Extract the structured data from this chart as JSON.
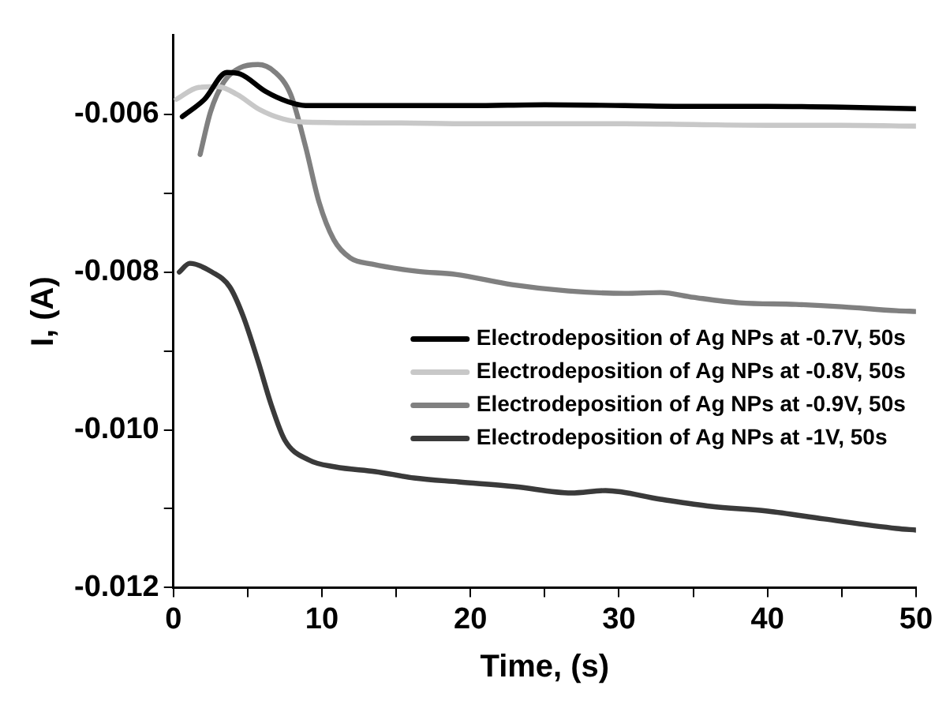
{
  "chart_data": {
    "type": "line",
    "xlabel": "Time, (s)",
    "ylabel": "I, (A)",
    "xlim": [
      0,
      50
    ],
    "ylim": [
      -0.012,
      -0.005
    ],
    "xticks": [
      0,
      {
        "value": 5,
        "label": null
      },
      10,
      {
        "value": 15,
        "label": null
      },
      20,
      {
        "value": 25,
        "label": null
      },
      30,
      {
        "value": 35,
        "label": null
      },
      40,
      {
        "value": 45,
        "label": null
      },
      50
    ],
    "yticks": [
      {
        "value": -0.012,
        "label": "-0.012"
      },
      {
        "value": -0.011,
        "label": null
      },
      {
        "value": -0.01,
        "label": "-0.010"
      },
      {
        "value": -0.009,
        "label": null
      },
      {
        "value": -0.008,
        "label": "-0.008"
      },
      {
        "value": -0.007,
        "label": null
      },
      {
        "value": -0.006,
        "label": "-0.006"
      }
    ],
    "grid": false,
    "legend": "right",
    "marker": "none",
    "line_style": "solid",
    "series": [
      {
        "name": "Electrodeposition of Ag NPs at -0.7V, 50s",
        "color": "#000000",
        "x": [
          0.6,
          2.1,
          3.6,
          4.5,
          6.2,
          7.7,
          8.9,
          15,
          20,
          25,
          30.4,
          35,
          40,
          45,
          50
        ],
        "values": [
          -0.00603,
          -0.00581,
          -0.00547,
          -0.00549,
          -0.00571,
          -0.00584,
          -0.00589,
          -0.00589,
          -0.00589,
          -0.00588,
          -0.00589,
          -0.0059,
          -0.0059,
          -0.00591,
          -0.00593
        ]
      },
      {
        "name": "Electrodeposition of Ag NPs at -0.8V, 50s",
        "color": "#c8c8c8",
        "x": [
          0.2,
          1.7,
          3,
          4.3,
          5.8,
          7.4,
          8.9,
          15,
          20,
          25,
          30.4,
          35,
          40,
          45,
          50
        ],
        "values": [
          -0.00581,
          -0.00566,
          -0.00565,
          -0.00575,
          -0.00594,
          -0.00606,
          -0.0061,
          -0.00611,
          -0.00612,
          -0.00612,
          -0.00612,
          -0.00613,
          -0.00614,
          -0.00614,
          -0.00615
        ]
      },
      {
        "name": "Electrodeposition of Ag NPs at -0.9V, 50s",
        "color": "#808080",
        "x": [
          1.8,
          2.5,
          3.4,
          4.5,
          5.7,
          6.8,
          7.9,
          8.9,
          9.8,
          10.8,
          11.9,
          13.4,
          16.4,
          19,
          22.8,
          26.6,
          30.4,
          32.8,
          35,
          38.1,
          41.9,
          45,
          48.7,
          50
        ],
        "values": [
          -0.00651,
          -0.00597,
          -0.00559,
          -0.00541,
          -0.00537,
          -0.00546,
          -0.00575,
          -0.00641,
          -0.00711,
          -0.00759,
          -0.00782,
          -0.0079,
          -0.00799,
          -0.00803,
          -0.00816,
          -0.00824,
          -0.00827,
          -0.00826,
          -0.00832,
          -0.00839,
          -0.00841,
          -0.00844,
          -0.00849,
          -0.0085
        ]
      },
      {
        "name": "Electrodeposition of Ag NPs at -1V, 50s",
        "color": "#3a3a3a",
        "x": [
          0.4,
          1.1,
          2.6,
          3.8,
          4.7,
          5.7,
          6.6,
          7.5,
          9.1,
          10.9,
          13.6,
          16.2,
          19.2,
          23,
          26.8,
          29.1,
          32.8,
          36.2,
          40,
          43.8,
          48.7,
          50
        ],
        "values": [
          -0.008,
          -0.00789,
          -0.008,
          -0.00819,
          -0.00856,
          -0.00913,
          -0.00969,
          -0.01013,
          -0.01038,
          -0.01047,
          -0.01053,
          -0.01061,
          -0.01066,
          -0.01072,
          -0.0108,
          -0.01077,
          -0.01088,
          -0.01097,
          -0.01103,
          -0.01113,
          -0.01125,
          -0.01127
        ]
      }
    ]
  }
}
